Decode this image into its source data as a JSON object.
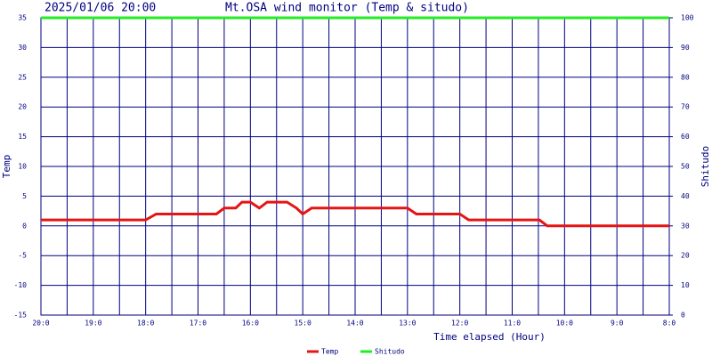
{
  "chart_data": {
    "type": "line",
    "timestamp": "2025/01/06 20:00",
    "title": "Mt.OSA wind monitor (Temp & situdo)",
    "xlabel": "Time elapsed (Hour)",
    "ylabel": "Temp",
    "y2label": "Shitudo",
    "x": [
      0,
      2,
      2.2,
      3.35,
      3.5,
      3.72,
      3.84,
      4.0,
      4.17,
      4.32,
      4.7,
      4.88,
      5.0,
      5.17,
      7.0,
      7.17,
      8.0,
      8.17,
      9.52,
      9.67,
      12
    ],
    "series": [
      {
        "name": "Temp",
        "color": "#e61414",
        "values": [
          1,
          1,
          2,
          2,
          3,
          3,
          4,
          4,
          3,
          4,
          4,
          3,
          2,
          3,
          3,
          2,
          2,
          1,
          1,
          0,
          0
        ]
      },
      {
        "name": "Shitudo",
        "color": "#22ee22",
        "axis": "y2",
        "values": [
          100,
          100,
          100,
          100,
          100,
          100,
          100,
          100,
          100,
          100,
          100,
          100,
          100,
          100,
          100,
          100,
          100,
          100,
          100,
          100,
          100
        ]
      }
    ],
    "xlim": [
      0,
      12
    ],
    "xticks": [
      {
        "value": 0,
        "label": "20:0"
      },
      {
        "value": 1,
        "label": "19:0"
      },
      {
        "value": 2,
        "label": "18:0"
      },
      {
        "value": 3,
        "label": "17:0"
      },
      {
        "value": 4,
        "label": "16:0"
      },
      {
        "value": 5,
        "label": "15:0"
      },
      {
        "value": 6,
        "label": "14:0"
      },
      {
        "value": 7,
        "label": "13:0"
      },
      {
        "value": 8,
        "label": "12:0"
      },
      {
        "value": 9,
        "label": "11:0"
      },
      {
        "value": 10,
        "label": "10:0"
      },
      {
        "value": 11,
        "label": "9:0"
      },
      {
        "value": 12,
        "label": "8:0"
      }
    ],
    "xminor": [
      0.5,
      1.5,
      2.5,
      3.5,
      4.5,
      5.5,
      6.5,
      7.5,
      8.5,
      9.5,
      10.5,
      11.5
    ],
    "ylim": [
      -15,
      35
    ],
    "yticks": [
      -15,
      -10,
      -5,
      0,
      5,
      10,
      15,
      20,
      25,
      30,
      35
    ],
    "y2lim": [
      0,
      100
    ],
    "y2ticks": [
      0,
      10,
      20,
      30,
      40,
      50,
      60,
      70,
      80,
      90,
      100
    ],
    "grid": true,
    "grid_color": "#000080",
    "legend": "bottom"
  }
}
